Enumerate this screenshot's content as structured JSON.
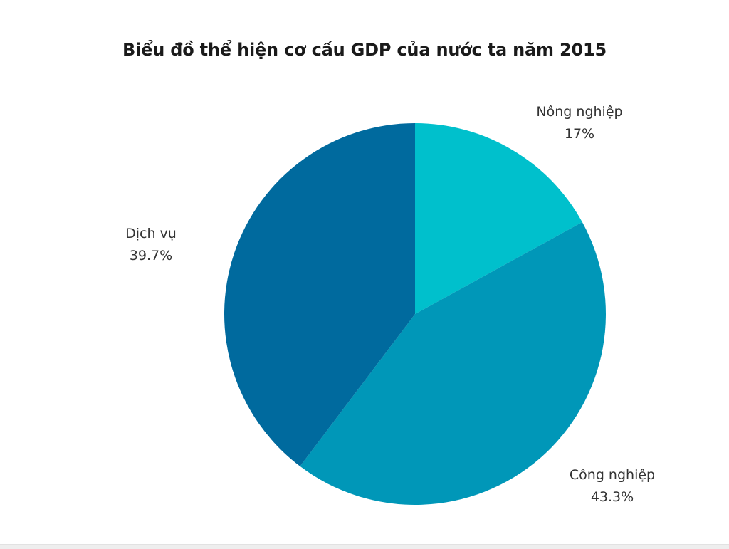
{
  "chart_data": {
    "type": "pie",
    "title": "Biểu đồ thể hiện cơ cấu GDP của nước ta năm 2015",
    "slices": [
      {
        "label": "Nông nghiệp",
        "value": 17,
        "value_label": "17%",
        "color": "#00c0cc"
      },
      {
        "label": "Công nghiệp",
        "value": 43.3,
        "value_label": "43.3%",
        "color": "#0097b8"
      },
      {
        "label": "Dịch vụ",
        "value": 39.7,
        "value_label": "39.7%",
        "color": "#006a9e"
      }
    ]
  }
}
